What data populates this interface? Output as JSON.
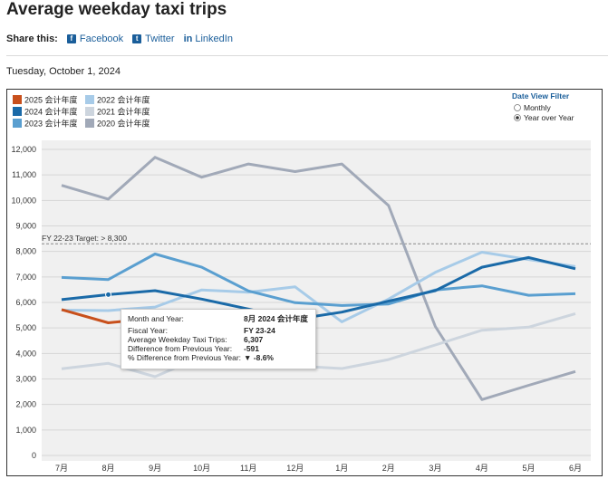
{
  "page": {
    "title": "Average weekday taxi trips",
    "share_label": "Share this:",
    "share_links": {
      "facebook": "Facebook",
      "twitter": "Twitter",
      "linkedin": "LinkedIn"
    },
    "date": "Tuesday, October 1, 2024"
  },
  "filter": {
    "title": "Date View Filter",
    "options": [
      "Monthly",
      "Year over Year"
    ],
    "selected": "Year over Year"
  },
  "tooltip": {
    "rows": [
      {
        "label": "Month and Year:",
        "value": "8月 2024 会计年度"
      },
      {
        "label": "Fiscal Year:",
        "value": "FY 23-24"
      },
      {
        "label": "Average Weekday Taxi Trips:",
        "value": "6,307"
      },
      {
        "label": "Difference from Previous Year:",
        "value": "-591"
      },
      {
        "label": "% Difference from Previous Year:",
        "value": "▼ -8.6%"
      }
    ]
  },
  "chart_data": {
    "type": "line",
    "categories": [
      "7月",
      "8月",
      "9月",
      "10月",
      "11月",
      "12月",
      "1月",
      "2月",
      "3月",
      "4月",
      "5月",
      "6月"
    ],
    "ylim": [
      0,
      12000
    ],
    "yticks": [
      0,
      1000,
      2000,
      3000,
      4000,
      5000,
      6000,
      7000,
      8000,
      9000,
      10000,
      11000,
      12000
    ],
    "ytick_labels": [
      "0",
      "1,000",
      "2,000",
      "3,000",
      "4,000",
      "5,000",
      "6,000",
      "7,000",
      "8,000",
      "9,000",
      "10,000",
      "11,000",
      "12,000"
    ],
    "grid": true,
    "target": {
      "label": "FY 22-23 Target: > 8,300",
      "value": 8300
    },
    "highlight": {
      "series": "2024 会计年度",
      "category": "8月"
    },
    "series": [
      {
        "name": "2025 会计年度",
        "color": "#c8501c",
        "values": [
          5720,
          5200,
          5380,
          null,
          null,
          null,
          null,
          null,
          null,
          null,
          null,
          null
        ]
      },
      {
        "name": "2024 会计年度",
        "color": "#1a6aa8",
        "values": [
          6110,
          6307,
          6460,
          6130,
          5740,
          5340,
          5620,
          6050,
          6460,
          7380,
          7760,
          7320
        ]
      },
      {
        "name": "2023 会计年度",
        "color": "#5a9fd0",
        "values": [
          6980,
          6898,
          7900,
          7380,
          6450,
          5990,
          5880,
          5940,
          6490,
          6650,
          6280,
          6340
        ]
      },
      {
        "name": "2022 会计年度",
        "color": "#a7cbe8",
        "values": [
          5700,
          5680,
          5820,
          6490,
          6400,
          6610,
          5240,
          6130,
          7180,
          7970,
          7680,
          7410
        ]
      },
      {
        "name": "2021 会计年度",
        "color": "#cdd5de",
        "values": [
          3400,
          3610,
          3090,
          3880,
          3650,
          3510,
          3410,
          3760,
          4330,
          4910,
          5030,
          5560
        ]
      },
      {
        "name": "2020 会计年度",
        "color": "#a1a9b8",
        "values": [
          10590,
          10050,
          11690,
          10910,
          11430,
          11130,
          11430,
          9800,
          5060,
          2190,
          2750,
          3290
        ]
      }
    ]
  }
}
